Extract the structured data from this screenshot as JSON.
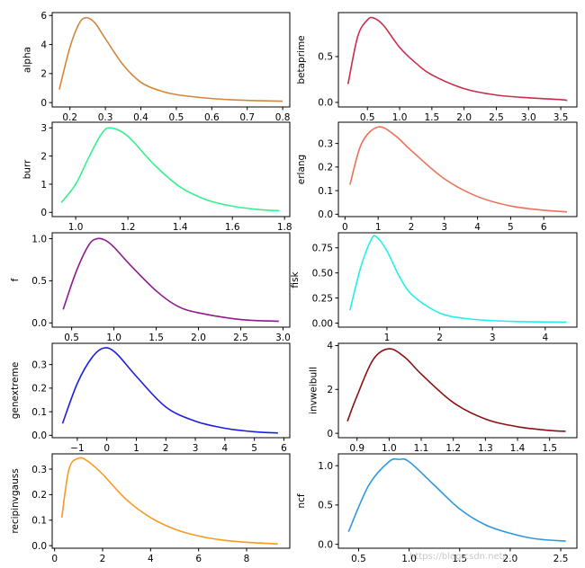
{
  "watermark": "https://blog.csdn.net/...",
  "chart_data": [
    {
      "type": "line",
      "ylabel": "alpha",
      "color": "#d2863b",
      "x": [
        0.17,
        0.2,
        0.225,
        0.245,
        0.27,
        0.3,
        0.35,
        0.4,
        0.45,
        0.5,
        0.6,
        0.7,
        0.8
      ],
      "y": [
        0.9,
        3.8,
        5.4,
        5.85,
        5.5,
        4.4,
        2.6,
        1.4,
        0.85,
        0.55,
        0.28,
        0.15,
        0.1
      ],
      "xlim": [
        0.15,
        0.82
      ],
      "ylim": [
        -0.3,
        6.2
      ],
      "xticks": [
        0.2,
        0.3,
        0.4,
        0.5,
        0.6,
        0.7,
        0.8
      ],
      "xtick_labels": [
        "0.2",
        "0.3",
        "0.4",
        "0.5",
        "0.6",
        "0.7",
        "0.8"
      ],
      "yticks": [
        0,
        2,
        4,
        6
      ],
      "ytick_labels": [
        "0",
        "2",
        "4",
        "6"
      ]
    },
    {
      "type": "line",
      "ylabel": "betaprime",
      "color": "#cb2c4a",
      "x": [
        0.2,
        0.35,
        0.5,
        0.6,
        0.75,
        1.0,
        1.25,
        1.5,
        2.0,
        2.5,
        3.0,
        3.5,
        3.6
      ],
      "y": [
        0.2,
        0.72,
        0.9,
        0.92,
        0.84,
        0.6,
        0.43,
        0.3,
        0.15,
        0.08,
        0.05,
        0.03,
        0.02
      ],
      "xlim": [
        0.05,
        3.75
      ],
      "ylim": [
        -0.05,
        0.98
      ],
      "xticks": [
        0.5,
        1.0,
        1.5,
        2.0,
        2.5,
        3.0,
        3.5
      ],
      "xtick_labels": [
        "0.5",
        "1.0",
        "1.5",
        "2.0",
        "2.5",
        "3.0",
        "3.5"
      ],
      "yticks": [
        0,
        0.5
      ],
      "ytick_labels": [
        "0.0",
        "0.5"
      ]
    },
    {
      "type": "line",
      "ylabel": "burr",
      "color": "#36f08e",
      "x": [
        0.945,
        1.0,
        1.05,
        1.1,
        1.135,
        1.2,
        1.3,
        1.4,
        1.5,
        1.6,
        1.7,
        1.78
      ],
      "y": [
        0.35,
        1.0,
        1.95,
        2.8,
        3.0,
        2.7,
        1.7,
        0.9,
        0.45,
        0.22,
        0.1,
        0.06
      ],
      "xlim": [
        0.91,
        1.82
      ],
      "ylim": [
        -0.15,
        3.2
      ],
      "xticks": [
        1.0,
        1.2,
        1.4,
        1.6,
        1.8
      ],
      "xtick_labels": [
        "1.0",
        "1.2",
        "1.4",
        "1.6",
        "1.8"
      ],
      "yticks": [
        0,
        1,
        2,
        3
      ],
      "ytick_labels": [
        "0",
        "1",
        "2",
        "3"
      ]
    },
    {
      "type": "line",
      "ylabel": "erlang",
      "color": "#ec7257",
      "x": [
        0.15,
        0.5,
        1.0,
        1.5,
        2.0,
        3.0,
        4.0,
        5.0,
        6.0,
        6.7
      ],
      "y": [
        0.125,
        0.3,
        0.37,
        0.335,
        0.27,
        0.15,
        0.075,
        0.035,
        0.017,
        0.01
      ],
      "xlim": [
        -0.2,
        7.0
      ],
      "ylim": [
        -0.01,
        0.39
      ],
      "xticks": [
        0,
        1,
        2,
        3,
        4,
        5,
        6
      ],
      "xtick_labels": [
        "0",
        "1",
        "2",
        "3",
        "4",
        "5",
        "6"
      ],
      "yticks": [
        0,
        0.1,
        0.2,
        0.3
      ],
      "ytick_labels": [
        "0.0",
        "0.1",
        "0.2",
        "0.3"
      ]
    },
    {
      "type": "line",
      "ylabel": "f",
      "color": "#8f1a8b",
      "x": [
        0.4,
        0.55,
        0.7,
        0.8,
        0.9,
        1.0,
        1.2,
        1.5,
        1.75,
        2.0,
        2.5,
        2.95
      ],
      "y": [
        0.16,
        0.6,
        0.92,
        1.0,
        0.98,
        0.9,
        0.68,
        0.38,
        0.2,
        0.12,
        0.04,
        0.02
      ],
      "xlim": [
        0.27,
        3.08
      ],
      "ylim": [
        -0.05,
        1.07
      ],
      "xticks": [
        0.5,
        1.0,
        1.5,
        2.0,
        2.5,
        3.0
      ],
      "xtick_labels": [
        "0.5",
        "1.0",
        "1.5",
        "2.0",
        "2.5",
        "3.0"
      ],
      "yticks": [
        0,
        0.5,
        1.0
      ],
      "ytick_labels": [
        "0.0",
        "0.5",
        "1.0"
      ]
    },
    {
      "type": "line",
      "ylabel": "fisk",
      "color": "#22eeee",
      "x": [
        0.3,
        0.5,
        0.7,
        0.8,
        1.0,
        1.25,
        1.5,
        2.0,
        2.5,
        3.0,
        3.5,
        4.4
      ],
      "y": [
        0.13,
        0.55,
        0.83,
        0.86,
        0.72,
        0.45,
        0.27,
        0.1,
        0.045,
        0.025,
        0.015,
        0.01
      ],
      "xlim": [
        0.08,
        4.6
      ],
      "ylim": [
        -0.04,
        0.9
      ],
      "xticks": [
        1,
        2,
        3,
        4
      ],
      "xtick_labels": [
        "1",
        "2",
        "3",
        "4"
      ],
      "yticks": [
        0,
        0.25,
        0.5,
        0.75
      ],
      "ytick_labels": [
        "0.00",
        "0.25",
        "0.50",
        "0.75"
      ]
    },
    {
      "type": "line",
      "ylabel": "genextreme",
      "color": "#1e1ee0",
      "x": [
        -1.5,
        -1.0,
        -0.5,
        -0.1,
        0.3,
        1.0,
        2.0,
        3.0,
        4.0,
        5.0,
        5.8
      ],
      "y": [
        0.05,
        0.22,
        0.33,
        0.37,
        0.35,
        0.25,
        0.12,
        0.06,
        0.03,
        0.015,
        0.01
      ],
      "xlim": [
        -1.85,
        6.2
      ],
      "ylim": [
        -0.01,
        0.39
      ],
      "xticks": [
        -1,
        0,
        1,
        2,
        3,
        4,
        5,
        6
      ],
      "xtick_labels": [
        "−1",
        "0",
        "1",
        "2",
        "3",
        "4",
        "5",
        "6"
      ],
      "yticks": [
        0,
        0.1,
        0.2,
        0.3
      ],
      "ytick_labels": [
        "0.0",
        "0.1",
        "0.2",
        "0.3"
      ]
    },
    {
      "type": "line",
      "ylabel": "invweibull",
      "color": "#8b1111",
      "x": [
        0.87,
        0.9,
        0.95,
        1.0,
        1.05,
        1.1,
        1.2,
        1.3,
        1.4,
        1.5,
        1.55
      ],
      "y": [
        0.55,
        1.7,
        3.35,
        3.85,
        3.45,
        2.7,
        1.4,
        0.65,
        0.3,
        0.13,
        0.09
      ],
      "xlim": [
        0.842,
        1.585
      ],
      "ylim": [
        -0.2,
        4.1
      ],
      "xticks": [
        0.9,
        1.0,
        1.1,
        1.2,
        1.3,
        1.4,
        1.5
      ],
      "xtick_labels": [
        "0.9",
        "1.0",
        "1.1",
        "1.2",
        "1.3",
        "1.4",
        "1.5"
      ],
      "yticks": [
        0,
        2,
        4
      ],
      "ytick_labels": [
        "0",
        "2",
        "4"
      ]
    },
    {
      "type": "line",
      "ylabel": "recipinvgauss",
      "color": "#f59a23",
      "x": [
        0.3,
        0.6,
        1.0,
        1.4,
        2.0,
        3.0,
        4.0,
        5.0,
        6.0,
        7.0,
        8.0,
        9.3
      ],
      "y": [
        0.11,
        0.3,
        0.343,
        0.33,
        0.28,
        0.18,
        0.11,
        0.065,
        0.038,
        0.022,
        0.013,
        0.007
      ],
      "xlim": [
        -0.1,
        9.8
      ],
      "ylim": [
        -0.01,
        0.36
      ],
      "xticks": [
        0,
        2,
        4,
        6,
        8
      ],
      "xtick_labels": [
        "0",
        "2",
        "4",
        "6",
        "8"
      ],
      "yticks": [
        0,
        0.1,
        0.2,
        0.3
      ],
      "ytick_labels": [
        "0.0",
        "0.1",
        "0.2",
        "0.3"
      ]
    },
    {
      "type": "line",
      "ylabel": "ncf",
      "color": "#2e97df",
      "x": [
        0.4,
        0.6,
        0.8,
        0.9,
        1.0,
        1.25,
        1.5,
        1.75,
        2.0,
        2.25,
        2.55
      ],
      "y": [
        0.16,
        0.75,
        1.05,
        1.08,
        1.05,
        0.75,
        0.45,
        0.25,
        0.14,
        0.07,
        0.04
      ],
      "xlim": [
        0.3,
        2.66
      ],
      "ylim": [
        -0.05,
        1.15
      ],
      "xticks": [
        0.5,
        1.0,
        1.5,
        2.0,
        2.5
      ],
      "xtick_labels": [
        "0.5",
        "1.0",
        "1.5",
        "2.0",
        "2.5"
      ],
      "yticks": [
        0,
        0.5,
        1.0
      ],
      "ytick_labels": [
        "0.0",
        "0.5",
        "1.0"
      ]
    }
  ]
}
